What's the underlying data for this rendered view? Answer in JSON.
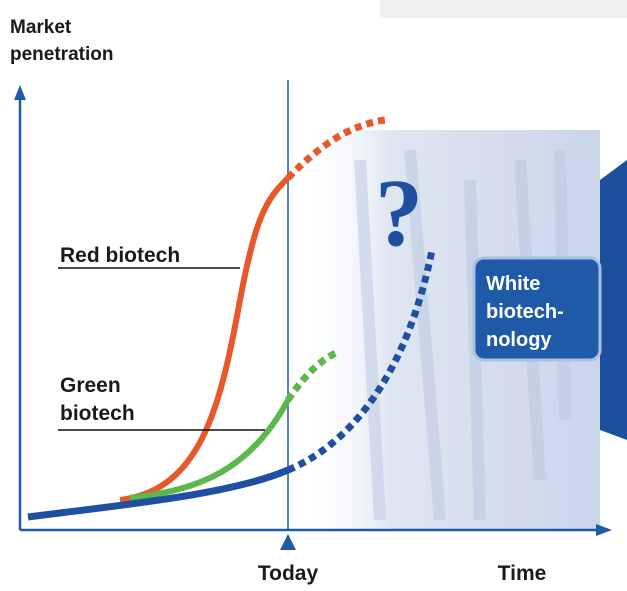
{
  "y_axis_label": [
    "Market",
    "penetration"
  ],
  "x_axis_label": "Time",
  "today_label": "Today",
  "question_mark": "?",
  "labels": {
    "red": "Red biotech",
    "green": [
      "Green",
      "biotech"
    ],
    "white": [
      "White",
      "biotech-",
      "nology"
    ]
  }
}
